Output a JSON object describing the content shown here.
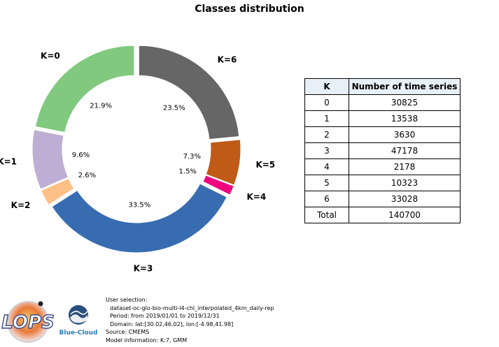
{
  "chart_data": {
    "type": "pie",
    "title": "Classes distribution",
    "slices": [
      {
        "label": "K=0",
        "pct_label": "21.9%",
        "value": 30825,
        "color": "#80c97e"
      },
      {
        "label": "K=1",
        "pct_label": "9.6%",
        "value": 13538,
        "color": "#beaed4"
      },
      {
        "label": "K=2",
        "pct_label": "2.6%",
        "value": 3630,
        "color": "#fdc086"
      },
      {
        "label": "K=3",
        "pct_label": "33.5%",
        "value": 47178,
        "color": "#386cb0"
      },
      {
        "label": "K=4",
        "pct_label": "1.5%",
        "value": 2178,
        "color": "#f0027f"
      },
      {
        "label": "K=5",
        "pct_label": "7.3%",
        "value": 10323,
        "color": "#bf5b17"
      },
      {
        "label": "K=6",
        "pct_label": "23.5%",
        "value": 33028,
        "color": "#666666"
      }
    ],
    "table": {
      "headers": [
        "K",
        "Number of time series"
      ],
      "rows": [
        [
          "0",
          "30825"
        ],
        [
          "1",
          "13538"
        ],
        [
          "2",
          "3630"
        ],
        [
          "3",
          "47178"
        ],
        [
          "4",
          "2178"
        ],
        [
          "5",
          "10323"
        ],
        [
          "6",
          "33028"
        ],
        [
          "Total",
          "140700"
        ]
      ]
    }
  },
  "footer": {
    "line1": "User selection:",
    "line2": "dataset-oc-glo-bio-multi-l4-chl_interpolated_4km_daily-rep",
    "line3": "Period: from 2019/01/01 to 2019/12/31",
    "line4": "Domain: lat:[30.02,46.02], lon:[-4.98,41.98]",
    "line5": "Source: CMEMS",
    "line6": "Model information: K:7, GMM"
  },
  "logos": {
    "lops": "LOPS",
    "bluecloud": "Blue-Cloud"
  }
}
